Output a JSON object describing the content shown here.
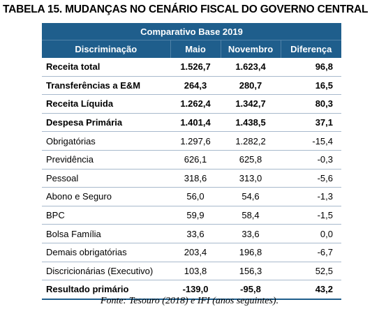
{
  "title": "TABELA 15. MUDANÇAS NO CENÁRIO FISCAL DO GOVERNO CENTRAL",
  "table": {
    "band": "Comparativo Base 2019",
    "headers": [
      "Discriminação",
      "Maio",
      "Novembro",
      "Diferença"
    ],
    "rows": [
      {
        "label": "Receita total",
        "maio": "1.526,7",
        "novembro": "1.623,4",
        "diferenca": "96,8",
        "bold": true
      },
      {
        "label": "Transferências a E&M",
        "maio": "264,3",
        "novembro": "280,7",
        "diferenca": "16,5",
        "bold": true
      },
      {
        "label": "Receita Líquida",
        "maio": "1.262,4",
        "novembro": "1.342,7",
        "diferenca": "80,3",
        "bold": true
      },
      {
        "label": "Despesa Primária",
        "maio": "1.401,4",
        "novembro": "1.438,5",
        "diferenca": "37,1",
        "bold": true
      },
      {
        "label": "Obrigatórias",
        "maio": "1.297,6",
        "novembro": "1.282,2",
        "diferenca": "-15,4",
        "bold": false
      },
      {
        "label": "Previdência",
        "maio": "626,1",
        "novembro": "625,8",
        "diferenca": "-0,3",
        "bold": false
      },
      {
        "label": "Pessoal",
        "maio": "318,6",
        "novembro": "313,0",
        "diferenca": "-5,6",
        "bold": false
      },
      {
        "label": "Abono e Seguro",
        "maio": "56,0",
        "novembro": "54,6",
        "diferenca": "-1,3",
        "bold": false
      },
      {
        "label": "BPC",
        "maio": "59,9",
        "novembro": "58,4",
        "diferenca": "-1,5",
        "bold": false
      },
      {
        "label": "Bolsa Família",
        "maio": "33,6",
        "novembro": "33,6",
        "diferenca": "0,0",
        "bold": false
      },
      {
        "label": "Demais obrigatórias",
        "maio": "203,4",
        "novembro": "196,8",
        "diferenca": "-6,7",
        "bold": false
      },
      {
        "label": "Discricionárias (Executivo)",
        "maio": "103,8",
        "novembro": "156,3",
        "diferenca": "52,5",
        "bold": false
      },
      {
        "label": "Resultado primário",
        "maio": "-139,0",
        "novembro": "-95,8",
        "diferenca": "43,2",
        "bold": true
      }
    ]
  },
  "source": "Fonte: Tesouro (2018) e IFI (anos seguintes).",
  "colors": {
    "header_bg": "#1f5e8c",
    "header_text": "#ffffff",
    "row_rule": "#a7b9cc"
  }
}
